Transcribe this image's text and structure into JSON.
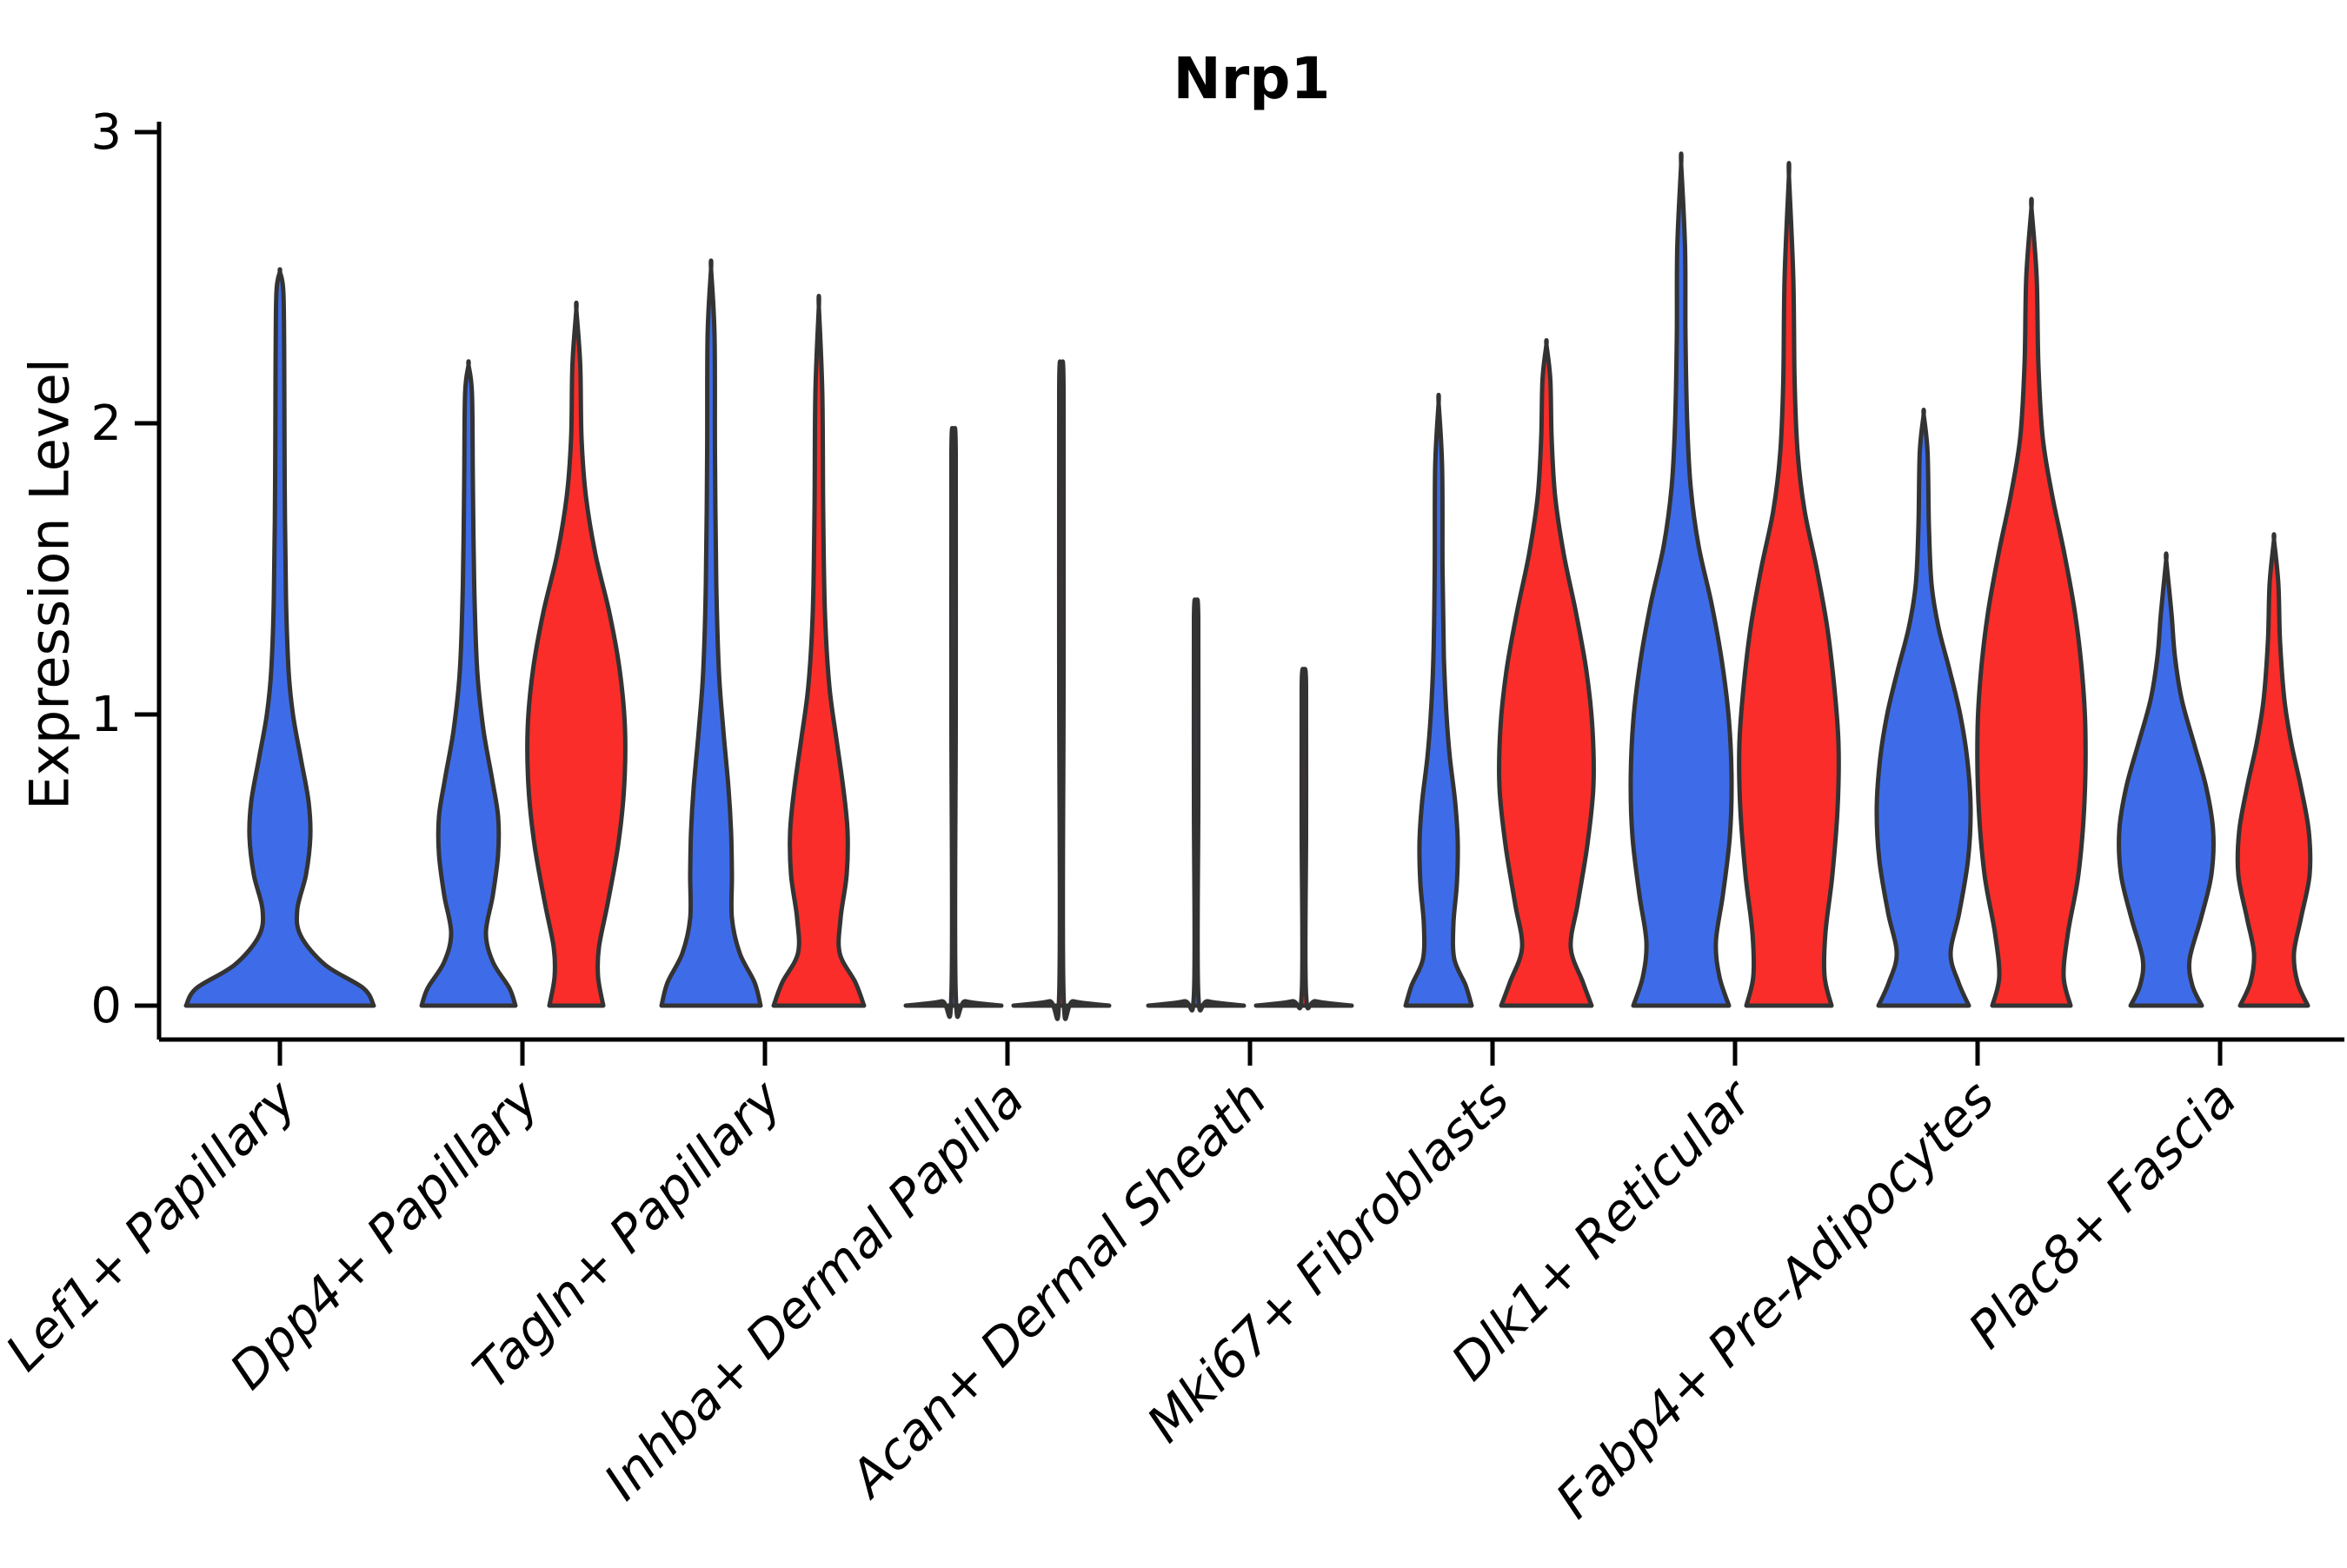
{
  "figure": {
    "background": "#ffffff"
  },
  "chart_data": {
    "type": "violin",
    "title": "Nrp1",
    "ylabel": "Expression Level",
    "xlabel": "",
    "ylim": [
      -0.12,
      3.05
    ],
    "yticks": [
      "0",
      "1",
      "2",
      "3"
    ],
    "ytick_values": [
      0,
      1,
      2,
      3
    ],
    "grid": false,
    "legend": "none",
    "split_groups": [
      "blue",
      "red"
    ],
    "colors": {
      "blue": "#3E6CE9",
      "red": "#FA2D2A",
      "outline": "#333333",
      "axis": "#000000"
    },
    "categories": [
      "Lef1+ Papillary",
      "Dpp4+ Papillary",
      "Tagln+ Papillary",
      "Inhba+ Dermal Papilla",
      "Acan+ Dermal Sheath",
      "Mki67+ Fibroblasts",
      "Dlk1+ Reticular",
      "Fabp4+ Pre-Adipocytes",
      "Plac8+ Fascia"
    ],
    "violins": [
      {
        "category": "Lef1+ Papillary",
        "parts": [
          {
            "group": "blue",
            "side": "center",
            "peak": 2.52,
            "profile": [
              [
                0,
                108
              ],
              [
                0.06,
                96
              ],
              [
                0.14,
                52
              ],
              [
                0.24,
                24
              ],
              [
                0.33,
                20
              ],
              [
                0.45,
                30
              ],
              [
                0.58,
                35
              ],
              [
                0.7,
                33
              ],
              [
                0.85,
                24
              ],
              [
                1.0,
                15
              ],
              [
                1.15,
                10
              ],
              [
                1.4,
                7
              ],
              [
                1.8,
                5.5
              ],
              [
                2.2,
                5
              ],
              [
                2.45,
                4
              ],
              [
                2.52,
                0
              ]
            ]
          }
        ]
      },
      {
        "category": "Dpp4+ Papillary",
        "parts": [
          {
            "group": "blue",
            "side": "left",
            "peak": 2.2,
            "profile": [
              [
                0,
                54
              ],
              [
                0.06,
                47
              ],
              [
                0.15,
                28
              ],
              [
                0.25,
                20
              ],
              [
                0.38,
                28
              ],
              [
                0.52,
                34
              ],
              [
                0.65,
                34
              ],
              [
                0.78,
                27
              ],
              [
                0.95,
                17
              ],
              [
                1.15,
                10
              ],
              [
                1.45,
                6.5
              ],
              [
                1.8,
                5
              ],
              [
                2.1,
                4
              ],
              [
                2.2,
                0
              ]
            ]
          },
          {
            "group": "red",
            "side": "right",
            "peak": 2.39,
            "profile": [
              [
                0,
                31
              ],
              [
                0.1,
                25
              ],
              [
                0.2,
                26
              ],
              [
                0.35,
                36
              ],
              [
                0.55,
                48
              ],
              [
                0.75,
                55
              ],
              [
                0.95,
                56
              ],
              [
                1.15,
                50
              ],
              [
                1.35,
                38
              ],
              [
                1.55,
                22
              ],
              [
                1.75,
                11
              ],
              [
                1.95,
                6
              ],
              [
                2.2,
                4.5
              ],
              [
                2.39,
                0
              ]
            ]
          }
        ]
      },
      {
        "category": "Tagln+ Papillary",
        "parts": [
          {
            "group": "blue",
            "side": "left",
            "peak": 2.53,
            "profile": [
              [
                0,
                57
              ],
              [
                0.08,
                50
              ],
              [
                0.18,
                33
              ],
              [
                0.3,
                24
              ],
              [
                0.45,
                24
              ],
              [
                0.6,
                23
              ],
              [
                0.75,
                20
              ],
              [
                0.95,
                14
              ],
              [
                1.15,
                9
              ],
              [
                1.45,
                6
              ],
              [
                1.9,
                4.5
              ],
              [
                2.3,
                4
              ],
              [
                2.53,
                0
              ]
            ]
          },
          {
            "group": "red",
            "side": "right",
            "peak": 2.4,
            "profile": [
              [
                0,
                52
              ],
              [
                0.08,
                42
              ],
              [
                0.18,
                24
              ],
              [
                0.3,
                25
              ],
              [
                0.45,
                32
              ],
              [
                0.6,
                33
              ],
              [
                0.75,
                28
              ],
              [
                0.92,
                20
              ],
              [
                1.1,
                12
              ],
              [
                1.35,
                7
              ],
              [
                1.7,
                5
              ],
              [
                2.1,
                4
              ],
              [
                2.4,
                0
              ]
            ]
          }
        ]
      },
      {
        "category": "Inhba+ Dermal Papilla",
        "parts": [
          {
            "group": "blue",
            "side": "left",
            "peak": 1.95,
            "profile": [
              [
                0,
                55
              ],
              [
                0.015,
                14
              ],
              [
                0.04,
                2.5
              ],
              [
                1.0,
                2.5
              ],
              [
                1.9,
                2.5
              ],
              [
                1.95,
                0
              ]
            ]
          },
          {
            "group": "red",
            "side": "right",
            "peak": 2.17,
            "profile": [
              [
                0,
                55
              ],
              [
                0.015,
                14
              ],
              [
                0.04,
                2.5
              ],
              [
                1.1,
                2.5
              ],
              [
                2.12,
                2.5
              ],
              [
                2.17,
                0
              ]
            ]
          }
        ]
      },
      {
        "category": "Acan+ Dermal Sheath",
        "parts": [
          {
            "group": "blue",
            "side": "left",
            "peak": 1.38,
            "profile": [
              [
                0,
                55
              ],
              [
                0.015,
                14
              ],
              [
                0.04,
                2.5
              ],
              [
                0.7,
                2.5
              ],
              [
                1.33,
                2.5
              ],
              [
                1.38,
                0
              ]
            ]
          },
          {
            "group": "red",
            "side": "right",
            "peak": 1.15,
            "profile": [
              [
                0,
                55
              ],
              [
                0.015,
                14
              ],
              [
                0.04,
                2.5
              ],
              [
                0.6,
                2.5
              ],
              [
                1.1,
                2.5
              ],
              [
                1.15,
                0
              ]
            ]
          }
        ]
      },
      {
        "category": "Mki67+ Fibroblasts",
        "parts": [
          {
            "group": "blue",
            "side": "left",
            "peak": 2.07,
            "profile": [
              [
                0,
                38
              ],
              [
                0.07,
                31
              ],
              [
                0.16,
                18
              ],
              [
                0.28,
                17
              ],
              [
                0.42,
                21
              ],
              [
                0.56,
                22
              ],
              [
                0.7,
                19
              ],
              [
                0.85,
                13
              ],
              [
                1.0,
                9
              ],
              [
                1.2,
                6
              ],
              [
                1.5,
                4.5
              ],
              [
                1.85,
                4
              ],
              [
                2.07,
                0
              ]
            ]
          },
          {
            "group": "red",
            "side": "right",
            "peak": 2.27,
            "profile": [
              [
                0,
                52
              ],
              [
                0.08,
                42
              ],
              [
                0.2,
                28
              ],
              [
                0.35,
                36
              ],
              [
                0.55,
                47
              ],
              [
                0.75,
                54
              ],
              [
                0.95,
                53
              ],
              [
                1.15,
                46
              ],
              [
                1.35,
                34
              ],
              [
                1.55,
                20
              ],
              [
                1.75,
                10
              ],
              [
                1.95,
                6
              ],
              [
                2.15,
                4.5
              ],
              [
                2.27,
                0
              ]
            ]
          }
        ]
      },
      {
        "category": "Dlk1+ Reticular",
        "parts": [
          {
            "group": "blue",
            "side": "left",
            "peak": 2.89,
            "profile": [
              [
                0,
                55
              ],
              [
                0.1,
                44
              ],
              [
                0.22,
                40
              ],
              [
                0.38,
                48
              ],
              [
                0.58,
                56
              ],
              [
                0.78,
                58
              ],
              [
                0.98,
                55
              ],
              [
                1.18,
                47
              ],
              [
                1.38,
                35
              ],
              [
                1.58,
                20
              ],
              [
                1.78,
                11
              ],
              [
                2.0,
                7
              ],
              [
                2.3,
                5
              ],
              [
                2.6,
                4.5
              ],
              [
                2.89,
                0
              ]
            ]
          },
          {
            "group": "red",
            "side": "right",
            "peak": 2.85,
            "profile": [
              [
                0,
                49
              ],
              [
                0.1,
                41
              ],
              [
                0.25,
                42
              ],
              [
                0.45,
                50
              ],
              [
                0.68,
                56
              ],
              [
                0.9,
                57
              ],
              [
                1.1,
                52
              ],
              [
                1.3,
                44
              ],
              [
                1.5,
                32
              ],
              [
                1.7,
                18
              ],
              [
                1.9,
                10
              ],
              [
                2.15,
                6.5
              ],
              [
                2.5,
                5
              ],
              [
                2.85,
                0
              ]
            ]
          }
        ]
      },
      {
        "category": "Fabp4+ Pre-Adipocytes",
        "parts": [
          {
            "group": "blue",
            "side": "left",
            "peak": 2.03,
            "profile": [
              [
                0,
                52
              ],
              [
                0.08,
                40
              ],
              [
                0.18,
                31
              ],
              [
                0.32,
                41
              ],
              [
                0.5,
                51
              ],
              [
                0.68,
                54
              ],
              [
                0.85,
                50
              ],
              [
                1.0,
                42
              ],
              [
                1.15,
                30
              ],
              [
                1.3,
                17
              ],
              [
                1.45,
                9
              ],
              [
                1.65,
                6
              ],
              [
                1.9,
                4.5
              ],
              [
                2.03,
                0
              ]
            ]
          },
          {
            "group": "red",
            "side": "right",
            "peak": 2.74,
            "profile": [
              [
                0,
                45
              ],
              [
                0.1,
                37
              ],
              [
                0.25,
                42
              ],
              [
                0.45,
                54
              ],
              [
                0.7,
                61
              ],
              [
                0.95,
                62
              ],
              [
                1.15,
                58
              ],
              [
                1.35,
                50
              ],
              [
                1.55,
                38
              ],
              [
                1.75,
                24
              ],
              [
                1.95,
                13
              ],
              [
                2.2,
                8
              ],
              [
                2.5,
                6
              ],
              [
                2.74,
                0
              ]
            ]
          }
        ]
      },
      {
        "category": "Plac8+ Fascia",
        "parts": [
          {
            "group": "blue",
            "side": "left",
            "peak": 1.53,
            "profile": [
              [
                0,
                41
              ],
              [
                0.07,
                30
              ],
              [
                0.16,
                27
              ],
              [
                0.3,
                40
              ],
              [
                0.45,
                52
              ],
              [
                0.6,
                54
              ],
              [
                0.75,
                46
              ],
              [
                0.9,
                32
              ],
              [
                1.05,
                18
              ],
              [
                1.2,
                10
              ],
              [
                1.35,
                6
              ],
              [
                1.53,
                0
              ]
            ]
          },
          {
            "group": "red",
            "side": "right",
            "peak": 1.6,
            "profile": [
              [
                0,
                39
              ],
              [
                0.08,
                27
              ],
              [
                0.18,
                23
              ],
              [
                0.3,
                31
              ],
              [
                0.45,
                41
              ],
              [
                0.6,
                40
              ],
              [
                0.75,
                31
              ],
              [
                0.9,
                20
              ],
              [
                1.05,
                12
              ],
              [
                1.25,
                7
              ],
              [
                1.45,
                5
              ],
              [
                1.6,
                0
              ]
            ]
          }
        ]
      }
    ]
  }
}
